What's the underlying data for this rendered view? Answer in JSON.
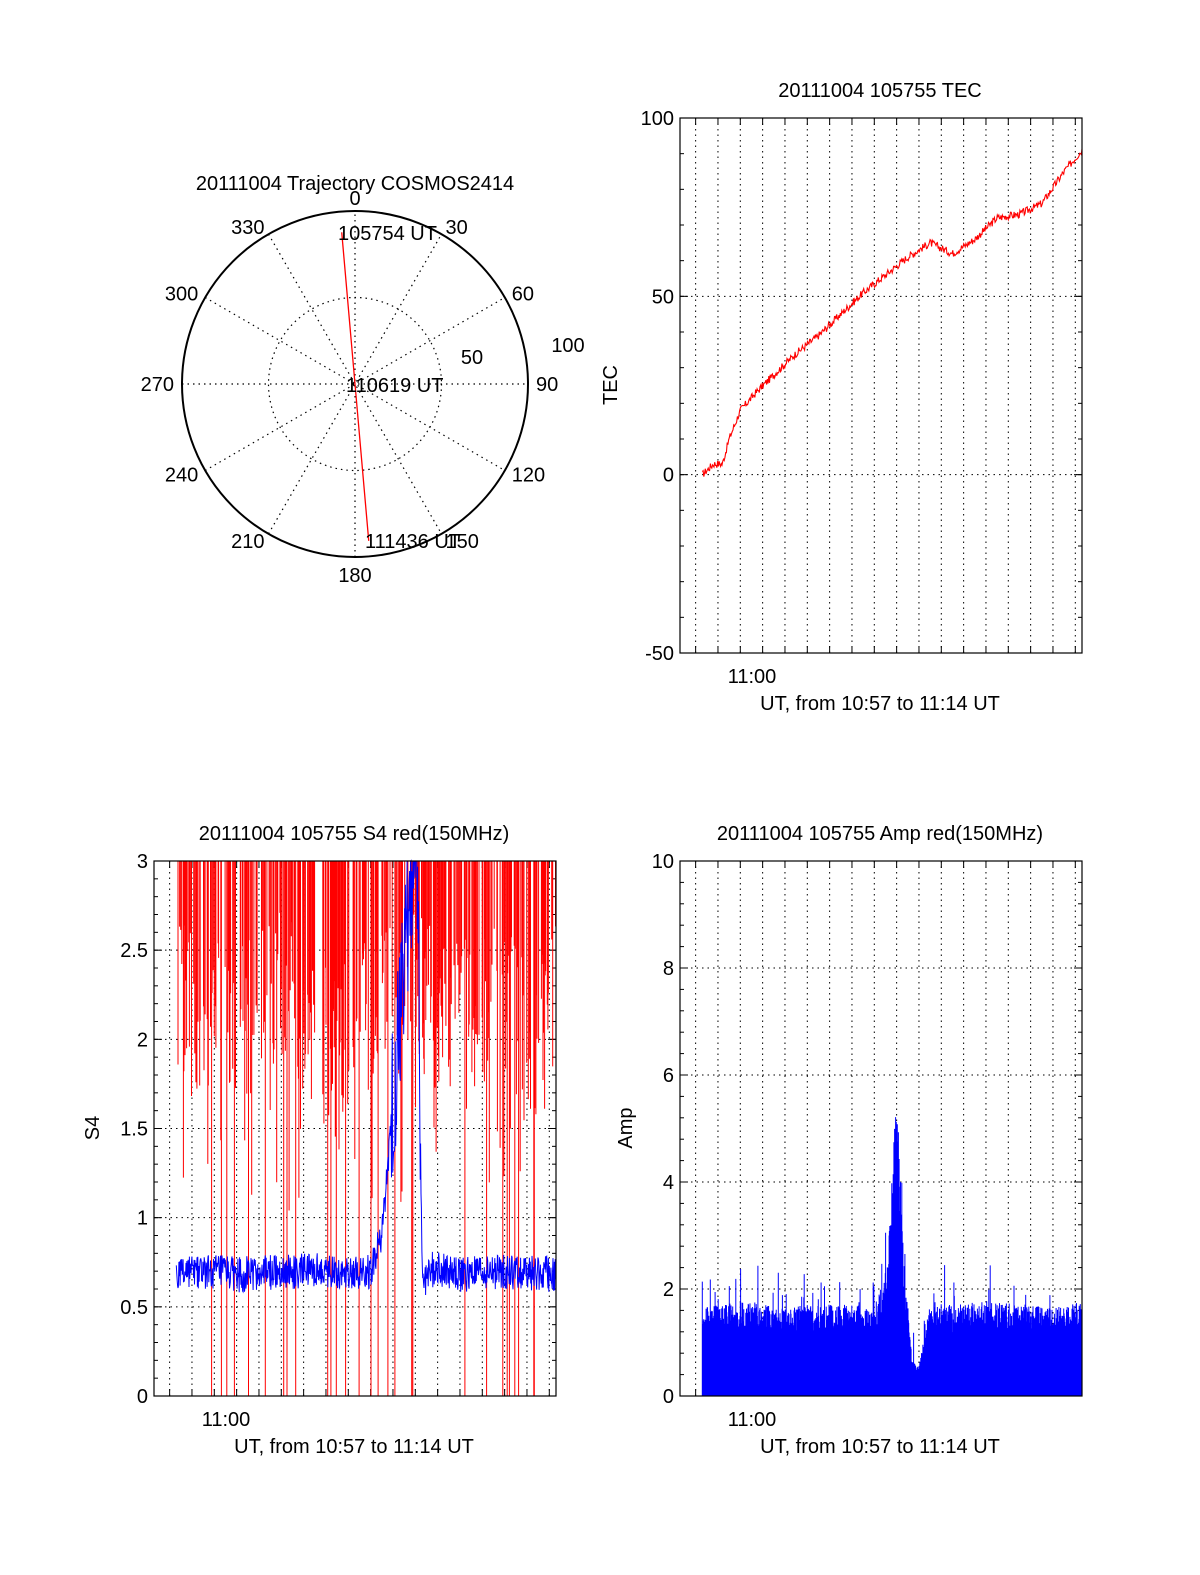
{
  "colors": {
    "red": "#ff0000",
    "blue": "#0000ff",
    "axis": "#000000"
  },
  "chart_data": [
    {
      "id": "trajectory",
      "type": "polar",
      "title": "20111004 Trajectory COSMOS2414",
      "angle_labels": [
        "0",
        "30",
        "60",
        "90",
        "120",
        "150",
        "180",
        "210",
        "240",
        "270",
        "300",
        "330"
      ],
      "radius_labels": [
        "50",
        "100"
      ],
      "radial_max": 100,
      "track": [
        {
          "azimuth": 355,
          "r": 88
        },
        {
          "azimuth": 180,
          "r": 0
        },
        {
          "azimuth": 175,
          "r": 91
        }
      ],
      "annotations": [
        {
          "text": "105754 UT",
          "azimuth": 355,
          "r": 88
        },
        {
          "text": "110619 UT",
          "azimuth": 180,
          "r": 0
        },
        {
          "text": "111436 UT",
          "azimuth": 175,
          "r": 91
        }
      ],
      "series_color": "#ff0000"
    },
    {
      "id": "tec",
      "type": "line",
      "title": "20111004 105755 TEC",
      "xlabel": "UT, from 10:57 to 11:14 UT",
      "ylabel": "TEC",
      "x_tick_labels": [
        "11:00"
      ],
      "y_ticks": [
        "-50",
        "0",
        "50",
        "100"
      ],
      "ylim": [
        -50,
        100
      ],
      "xlim_minutes": [
        -3.7,
        14.3
      ],
      "series": [
        {
          "color": "#ff0000",
          "x": [
            -2.7,
            -2.2,
            -1.8,
            -1.5,
            -1.0,
            -0.3,
            0.5,
            1.5,
            2.5,
            3.5,
            4.5,
            5.5,
            6.5,
            7.5,
            8.5,
            9.5,
            10.5,
            11.5,
            12.5,
            13.5,
            14.3
          ],
          "y": [
            0,
            3,
            3,
            10,
            18,
            23,
            28,
            34,
            39,
            45,
            51,
            56,
            61,
            65,
            62,
            66,
            72,
            73,
            76,
            85,
            91
          ]
        }
      ]
    },
    {
      "id": "s4",
      "type": "line",
      "title": "20111004 105755 S4 red(150MHz)",
      "xlabel": "UT, from 10:57 to 11:14 UT",
      "ylabel": "S4",
      "x_tick_labels": [
        "11:00"
      ],
      "y_ticks": [
        "0",
        "0.5",
        "1",
        "1.5",
        "2",
        "2.5",
        "3"
      ],
      "ylim": [
        0,
        3
      ],
      "xlim_minutes": [
        -3.7,
        14.3
      ],
      "series": [
        {
          "color": "#0000ff",
          "x": [
            -2.7,
            -1.5,
            0.0,
            2.0,
            4.0,
            6.0,
            6.5,
            7.0,
            7.5,
            7.8,
            8.0,
            8.1,
            8.3,
            8.4,
            8.6,
            9.0,
            10.0,
            12.0,
            14.3
          ],
          "y": [
            0.7,
            0.7,
            0.68,
            0.7,
            0.7,
            0.7,
            0.9,
            1.6,
            2.4,
            3.0,
            3.0,
            3.0,
            0.7,
            0.65,
            0.7,
            0.72,
            0.68,
            0.7,
            0.68
          ]
        },
        {
          "color": "#ff0000",
          "x": [
            -2.7,
            -1.5,
            0.0,
            2.0,
            4.0,
            6.0,
            7.0,
            8.0,
            10.0,
            12.0,
            13.0,
            14.3
          ],
          "y": [
            2.7,
            2.6,
            2.5,
            2.8,
            2.4,
            2.6,
            2.8,
            2.7,
            2.6,
            2.7,
            2.4,
            2.7
          ]
        }
      ]
    },
    {
      "id": "amp",
      "type": "line",
      "title": "20111004 105755 Amp red(150MHz)",
      "xlabel": "UT, from 10:57 to 11:14 UT",
      "ylabel": "Amp",
      "x_tick_labels": [
        "11:00"
      ],
      "y_ticks": [
        "0",
        "2",
        "4",
        "6",
        "8",
        "10"
      ],
      "ylim": [
        0,
        10
      ],
      "xlim_minutes": [
        -3.7,
        14.3
      ],
      "series": [
        {
          "color": "#0000ff",
          "x": [
            -2.7,
            -1.0,
            1.0,
            3.0,
            5.0,
            5.6,
            6.0,
            6.3,
            6.7,
            7.0,
            7.5,
            8.3,
            8.5,
            9.5,
            11.0,
            13.0,
            14.3
          ],
          "y": [
            1.5,
            1.6,
            1.5,
            1.6,
            1.5,
            2.3,
            5.3,
            2.5,
            0.6,
            0.5,
            1.6,
            1.6,
            1.5,
            1.6,
            1.6,
            1.5,
            1.6
          ]
        }
      ]
    }
  ]
}
